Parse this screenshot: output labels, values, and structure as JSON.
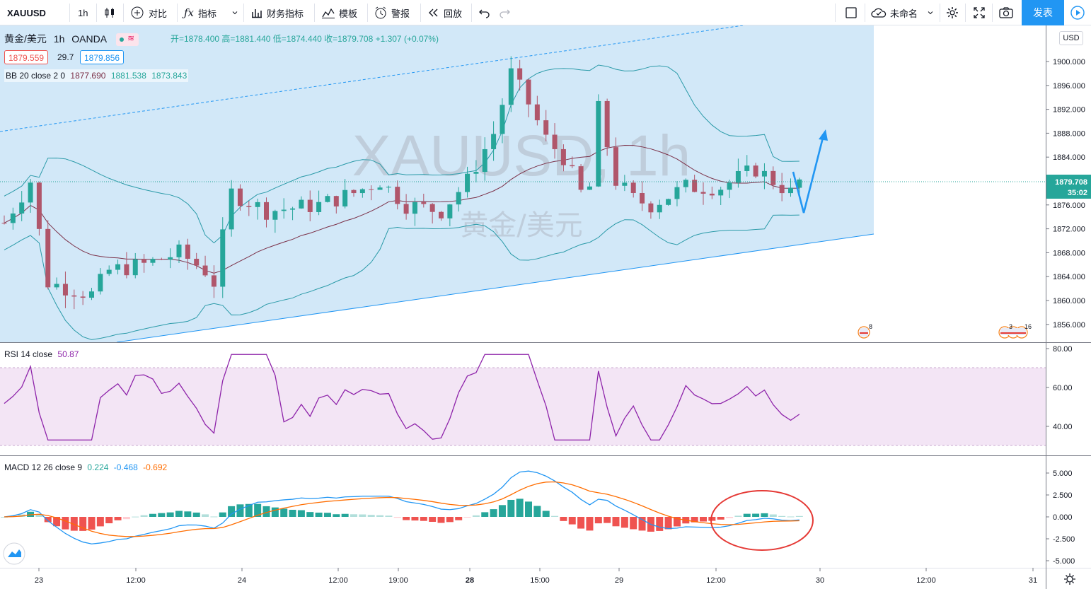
{
  "toolbar": {
    "symbol": "XAUUSD",
    "interval": "1h",
    "compare_label": "对比",
    "indicators_label": "指标",
    "financials_label": "财务指标",
    "templates_label": "模板",
    "alert_label": "警报",
    "replay_label": "回放",
    "layout_name": "未命名",
    "publish_label": "发表"
  },
  "legend": {
    "symbol_name": "黄金/美元",
    "interval": "1h",
    "exchange": "OANDA",
    "ohlc": "开=1878.400  高=1881.440  低=1874.440  收=1879.708  +1.307 (+0.07%)",
    "bid": "1879.559",
    "spread": "29.7",
    "ask": "1879.856",
    "bb_label": "BB 20 close 2 0",
    "bb_mid": "1877.690",
    "bb_upper": "1881.538",
    "bb_lower": "1873.843"
  },
  "watermark": {
    "title": "XAUUSD, 1h",
    "subtitle": "黄金/美元"
  },
  "price_axis": {
    "currency": "USD",
    "ticks": [
      "1900.000",
      "1896.000",
      "1892.000",
      "1888.000",
      "1884.000",
      "1876.000",
      "1872.000",
      "1868.000",
      "1864.000",
      "1860.000",
      "1856.000"
    ],
    "last_price": "1879.708",
    "countdown": "35:02"
  },
  "events": {
    "event1_count": "8",
    "event2_count": "3",
    "event3_count": "16"
  },
  "rsi": {
    "label": "RSI 14 close",
    "value": "50.87",
    "ticks": [
      "80.00",
      "60.00",
      "40.00"
    ]
  },
  "macd": {
    "label": "MACD 12 26 close 9",
    "hist": "0.224",
    "macd_value": "-0.468",
    "signal_value": "-0.692",
    "ticks": [
      "5.000",
      "2.500",
      "0.000",
      "-2.500",
      "-5.000"
    ]
  },
  "time_axis": {
    "ticks": [
      "23",
      "12:00",
      "24",
      "12:00",
      "19:00",
      "28",
      "15:00",
      "29",
      "12:00",
      "30",
      "12:00",
      "31"
    ]
  },
  "colors": {
    "up": "#26a69a",
    "down": "#b0566b",
    "channel_fill": "#d2e8f8",
    "bb_line": "#2a9aa8",
    "bb_mid": "#7b3048",
    "rsi_line": "#8e24aa",
    "rsi_fill": "#f3e5f5",
    "macd_line": "#2196f3",
    "signal_line": "#ff6d00",
    "accent": "#2196f3",
    "annotation": "#e53935"
  }
}
